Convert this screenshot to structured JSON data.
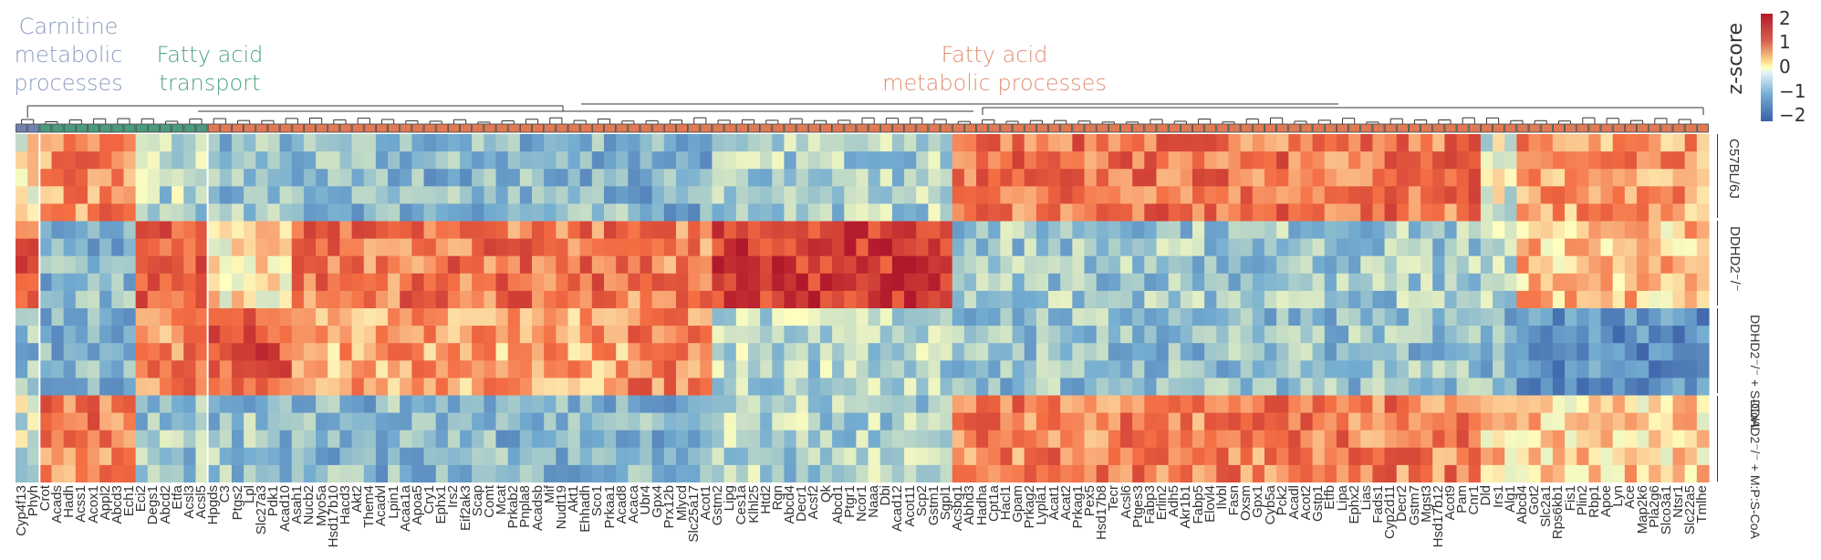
{
  "chart_data": {
    "type": "heatmap",
    "title": "",
    "colorbar": {
      "title": "z-score",
      "ticks": [
        "2",
        "1",
        "0",
        "−1",
        "−2"
      ],
      "range": [
        -2,
        2
      ],
      "colors": [
        "#3a5fa8",
        "#74add1",
        "#ffffbf",
        "#f46d43",
        "#b2182b"
      ]
    },
    "categories": [
      {
        "name": "Carnitine metabolic processes",
        "color": "#8a9bbf",
        "box_color": "#6f82b0",
        "start": 0,
        "count": 2
      },
      {
        "name": "Fatty acid transport",
        "color": "#4fa57e",
        "box_color": "#4a9a7c",
        "start": 2,
        "count": 14
      },
      {
        "name": "Fatty acid metabolic processes",
        "color": "#e08f70",
        "box_color": "#e07a55",
        "start": 16,
        "count": 125
      }
    ],
    "row_groups": [
      {
        "label": "C57BL/6J",
        "rows": 5
      },
      {
        "label": "DDHD2⁻/⁻",
        "rows": 5
      },
      {
        "label": "DDHD2⁻/⁻ + S-CoA",
        "rows": 5
      },
      {
        "label": "DDHD2⁻/⁻ + M:P:S-CoA",
        "rows": 5
      }
    ],
    "genes": [
      "Cyp4f13",
      "Phyh",
      "Crot",
      "Acads",
      "Hadh",
      "Acss1",
      "Acox1",
      "Appl2",
      "Abcd3",
      "Ech1",
      "Eci2",
      "Degs1",
      "Abcd2",
      "Etfa",
      "Acsl3",
      "Acsl5",
      "Hpgds",
      "C3",
      "Ptgs2",
      "Lpl",
      "Slc27a3",
      "Pdk1",
      "Acad10",
      "Asah1",
      "Nucb2",
      "Myo5a",
      "Hsd17b10",
      "Hacd3",
      "Akt2",
      "Them4",
      "Acadvl",
      "Lpin1",
      "Acaa1a",
      "Apoa5",
      "Cry1",
      "Ephx1",
      "Irs2",
      "Eif2ak3",
      "Scap",
      "Comt",
      "Mcat",
      "Prkab2",
      "Pnpla8",
      "Acadsb",
      "Mif",
      "Nudt19",
      "Akt1",
      "Ehhadh",
      "Sco1",
      "Prkaa1",
      "Acad8",
      "Acaca",
      "Ubr4",
      "Gpx4",
      "Prx12b",
      "Mlycd",
      "Slc25a17",
      "Acot1",
      "Gstm2",
      "Lipg",
      "Ces1a",
      "Klhl25",
      "Htd2",
      "Rgn",
      "Abcd4",
      "Decr1",
      "Acsf2",
      "Qk",
      "Abcd1",
      "Ptgr1",
      "Ncor1",
      "Naaa",
      "Dbi",
      "Acad12",
      "Acot11",
      "Scp2",
      "Gstm1",
      "Sgpl1",
      "Acsbg1",
      "Abhd3",
      "Hadha",
      "Cpt1a",
      "Hacl1",
      "Gpam",
      "Prkag2",
      "Lypla1",
      "Acat1",
      "Acat2",
      "Prkag1",
      "Pex5",
      "Hsd17b8",
      "Tecr",
      "Acsl6",
      "Ptges3",
      "Fabp3",
      "Erlin2",
      "Adh5",
      "Akr1b1",
      "Fabp5",
      "Elovl4",
      "Ilvbl",
      "Fasn",
      "Oxsm",
      "Gpx1",
      "Cyb5a",
      "Pck2",
      "Acadl",
      "Acot2",
      "Gstp1",
      "Etfb",
      "Lipa",
      "Ephx2",
      "Lias",
      "Fads1",
      "Cyp2d11",
      "Decr2",
      "Gstm7",
      "Mgst3",
      "Hsd17b12",
      "Acot9",
      "Pam",
      "Cnr1",
      "Dld",
      "Irs1",
      "Alg1",
      "Abcd4",
      "Got2",
      "Slc2a1",
      "Rps6kb1",
      "Fis1",
      "Plin2",
      "Rbp1",
      "Apoe",
      "Lyn",
      "Ace",
      "Map2k6",
      "Pla2g6",
      "Slco3a1",
      "Ntsr1",
      "Slc22a5",
      "Tmlhe"
    ],
    "block_pattern": {
      "description": "Approximate mean z-score per row-group for gene column ranges (start,end inclusive, 0-based)",
      "blocks": [
        {
          "cols": [
            0,
            1
          ],
          "means": [
            0.1,
            1.2,
            -0.8,
            -0.3
          ]
        },
        {
          "cols": [
            2,
            9
          ],
          "means": [
            0.8,
            -0.9,
            -0.9,
            0.9
          ]
        },
        {
          "cols": [
            10,
            15
          ],
          "means": [
            -0.5,
            1.2,
            0.8,
            -0.7
          ]
        },
        {
          "cols": [
            16,
            22
          ],
          "means": [
            -0.8,
            0.2,
            1.3,
            -0.8
          ]
        },
        {
          "cols": [
            23,
            50
          ],
          "means": [
            -0.9,
            1.0,
            0.6,
            -0.9
          ]
        },
        {
          "cols": [
            51,
            57
          ],
          "means": [
            -1.0,
            0.9,
            0.9,
            -0.9
          ]
        },
        {
          "cols": [
            58,
            77
          ],
          "means": [
            -0.6,
            1.6,
            -0.5,
            -0.6
          ]
        },
        {
          "cols": [
            78,
            121
          ],
          "means": [
            1.0,
            -0.7,
            -0.8,
            0.9
          ]
        },
        {
          "cols": [
            122,
            124
          ],
          "means": [
            -0.2,
            -0.5,
            -0.9,
            0.3
          ]
        },
        {
          "cols": [
            125,
            140
          ],
          "means": [
            0.7,
            0.4,
            -1.4,
            0.3
          ]
        }
      ]
    },
    "xlabel": "",
    "ylabel": ""
  },
  "labels": {
    "cat1": [
      "Carnitine",
      "metabolic",
      "processes"
    ],
    "cat2": [
      "Fatty acid",
      "transport"
    ],
    "cat3": [
      "Fatty acid",
      "metabolic processes"
    ],
    "colorbar_title": "z-score",
    "ticks": [
      "2",
      "1",
      "0",
      "−1",
      "−2"
    ]
  }
}
